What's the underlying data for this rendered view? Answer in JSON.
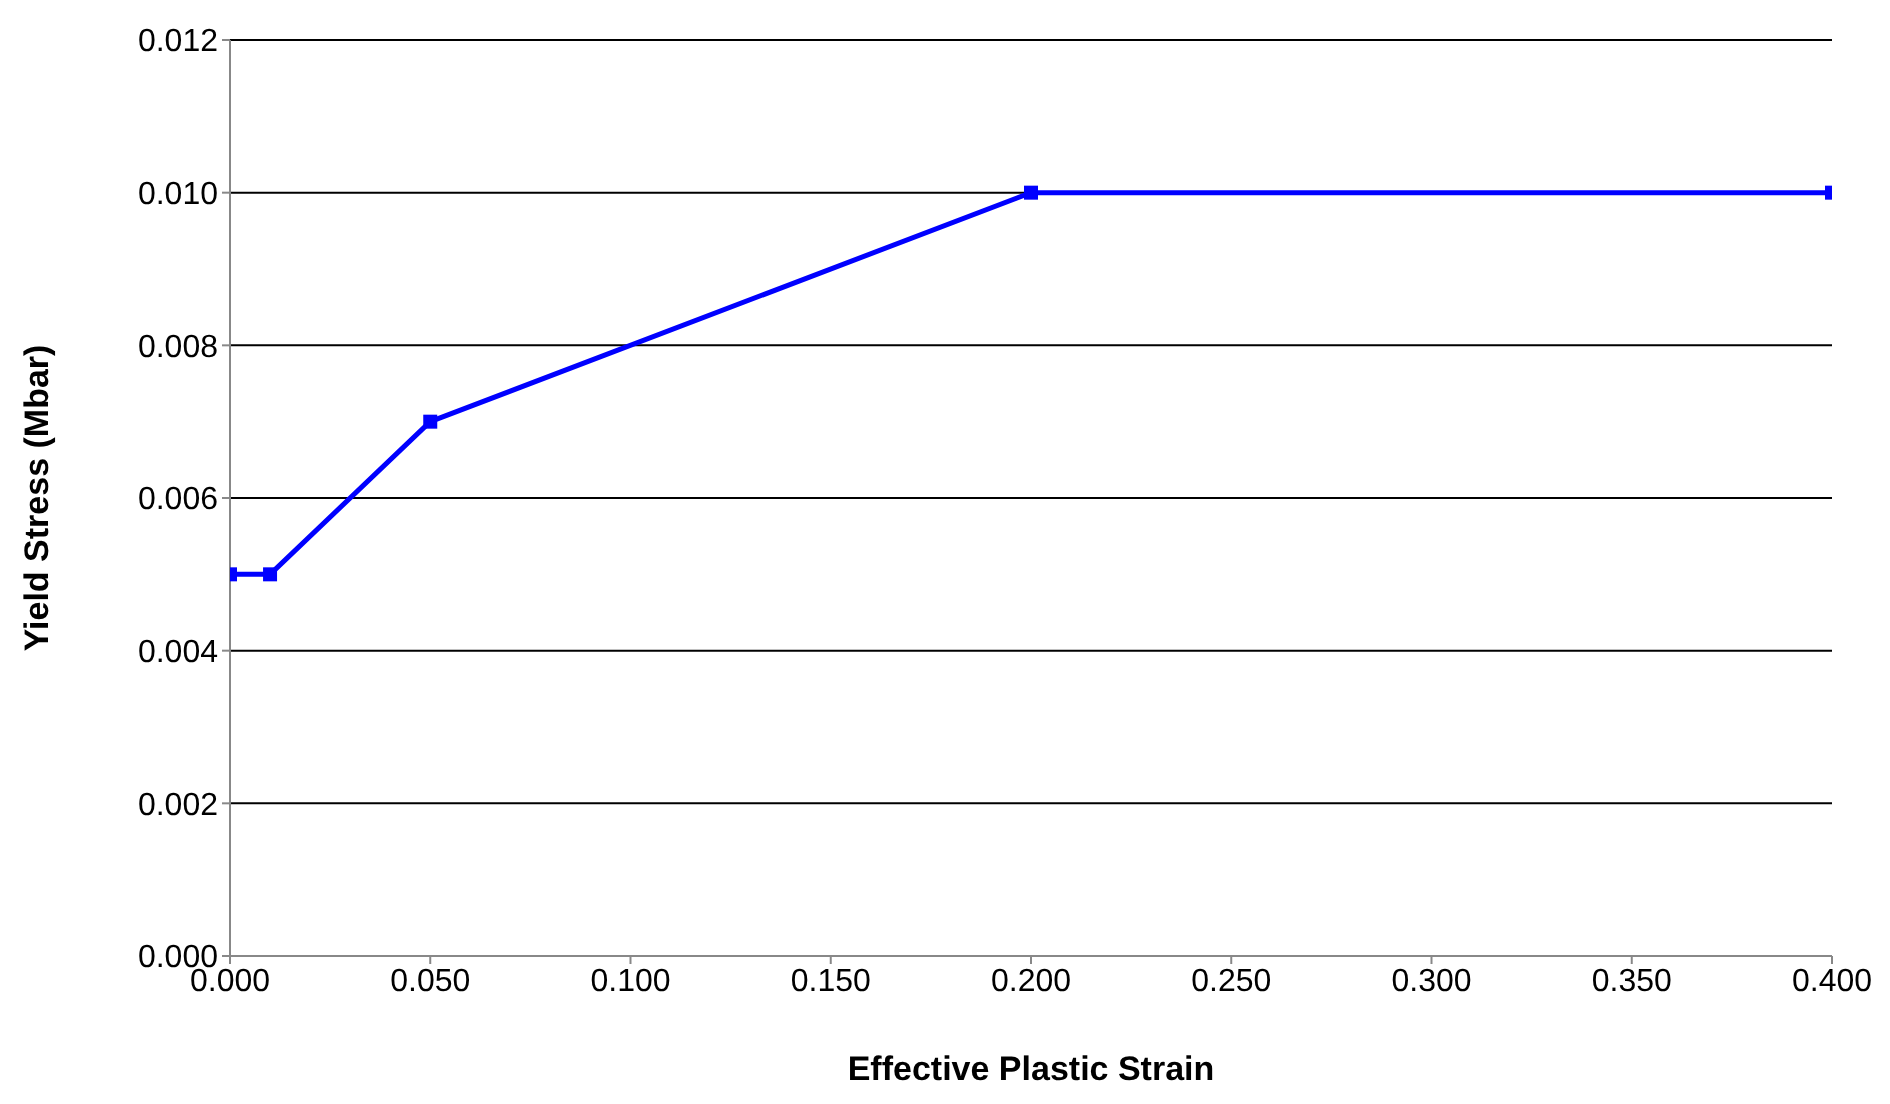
{
  "chart_data": {
    "type": "line",
    "xlabel": "Effective Plastic Strain",
    "ylabel": "Yield Stress (Mbar)",
    "x": [
      0,
      0.01,
      0.05,
      0.2,
      0.4
    ],
    "series": [
      {
        "color": "#0000ff",
        "values": [
          0.005,
          0.005,
          0.007,
          0.01,
          0.01
        ]
      }
    ],
    "xlim": [
      0,
      0.4
    ],
    "xticks": [
      {
        "value": 0,
        "label": "0.000"
      },
      {
        "value": 0.05,
        "label": "0.050"
      },
      {
        "value": 0.1,
        "label": "0.100"
      },
      {
        "value": 0.15,
        "label": "0.150"
      },
      {
        "value": 0.2,
        "label": "0.200"
      },
      {
        "value": 0.25,
        "label": "0.250"
      },
      {
        "value": 0.3,
        "label": "0.300"
      },
      {
        "value": 0.35,
        "label": "0.350"
      },
      {
        "value": 0.4,
        "label": "0.400"
      }
    ],
    "ylim": [
      0,
      0.012
    ],
    "yticks": [
      {
        "value": 0,
        "label": "0.000"
      },
      {
        "value": 0.002,
        "label": "0.002"
      },
      {
        "value": 0.004,
        "label": "0.004"
      },
      {
        "value": 0.006,
        "label": "0.006"
      },
      {
        "value": 0.008,
        "label": "0.008"
      },
      {
        "value": 0.01,
        "label": "0.010"
      },
      {
        "value": 0.012,
        "label": "0.012"
      }
    ],
    "grid": "y",
    "marker": "square",
    "line_style": "solid",
    "legend": false
  }
}
